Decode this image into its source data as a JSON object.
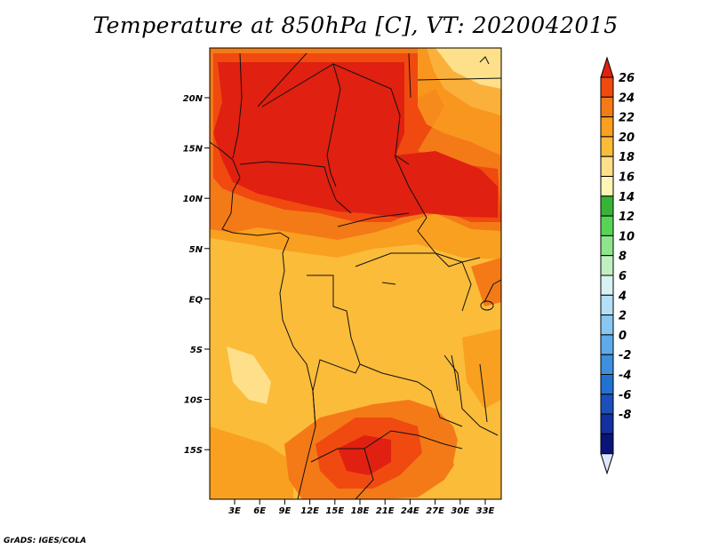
{
  "title": "Temperature at 850hPa [C], VT: 2020042015",
  "credit": "GrADS: IGES/COLA",
  "lat_labels": [
    "20N",
    "15N",
    "10N",
    "5N",
    "EQ",
    "5S",
    "10S",
    "15S"
  ],
  "lon_labels": [
    "3E",
    "6E",
    "9E",
    "12E",
    "15E",
    "18E",
    "21E",
    "24E",
    "27E",
    "30E",
    "33E"
  ],
  "colorbar": {
    "labels": [
      "26",
      "24",
      "22",
      "20",
      "18",
      "16",
      "14",
      "12",
      "10",
      "8",
      "6",
      "4",
      "2",
      "0",
      "-2",
      "-4",
      "-6",
      "-8"
    ],
    "colors": [
      "#e02010",
      "#f04a10",
      "#f47a18",
      "#f9a020",
      "#fbbc3a",
      "#fee08a",
      "#fff5b5",
      "#37b437",
      "#58d358",
      "#8ee58e",
      "#c0f0c0",
      "#d8f2f4",
      "#b3dff7",
      "#88c7f4",
      "#5fabea",
      "#3e8fdd",
      "#2272d0",
      "#1b50bc",
      "#12309f",
      "#0a1478",
      "#dde8ff"
    ]
  }
}
